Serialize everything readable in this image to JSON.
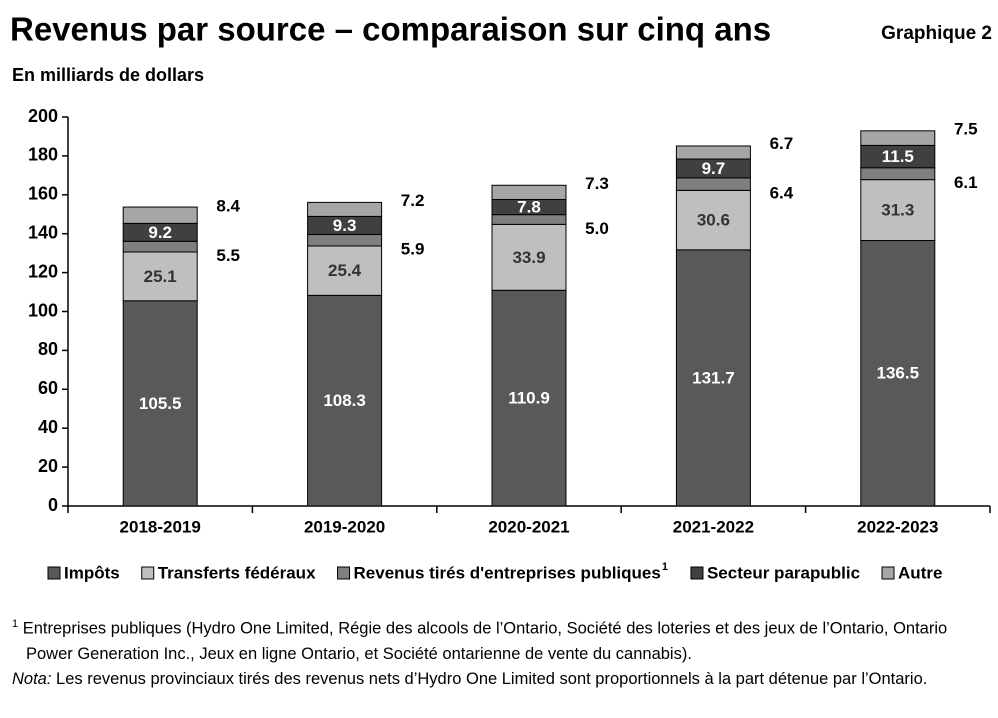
{
  "chart_data": {
    "type": "stacked_bar",
    "title": "Revenus par source – comparaison sur cinq ans",
    "chart_number": "Graphique 2",
    "subtitle": "En milliards de dollars",
    "categories": [
      "2018-2019",
      "2019-2020",
      "2020-2021",
      "2021-2022",
      "2022-2023"
    ],
    "series": [
      {
        "name": "Impôts",
        "color": "#595959",
        "label_color": "#ffffff",
        "label_position": "inside",
        "values": [
          105.5,
          108.3,
          110.9,
          131.7,
          136.5
        ]
      },
      {
        "name": "Transferts fédéraux",
        "color": "#bfbfbf",
        "label_color": "#333333",
        "label_position": "inside",
        "values": [
          25.1,
          25.4,
          33.9,
          30.6,
          31.3
        ]
      },
      {
        "name": "Revenus tirés d'entreprises publiques",
        "footnote_mark": "1",
        "color": "#7f7f7f",
        "label_color": "#000000",
        "label_position": "outside",
        "values": [
          5.5,
          5.9,
          5.0,
          6.4,
          6.1
        ],
        "value_labels": [
          "5.5",
          "5.9",
          "5.0",
          "6.4",
          "6.1"
        ]
      },
      {
        "name": "Secteur parapublic",
        "color": "#404040",
        "label_color": "#ffffff",
        "label_position": "inside",
        "values": [
          9.2,
          9.3,
          7.8,
          9.7,
          11.5
        ]
      },
      {
        "name": "Autre",
        "color": "#a6a6a6",
        "label_color": "#000000",
        "label_position": "outside",
        "values": [
          8.4,
          7.2,
          7.3,
          6.7,
          7.5
        ]
      }
    ],
    "ylim": [
      0,
      200
    ],
    "yticks": [
      0,
      20,
      40,
      60,
      80,
      100,
      120,
      140,
      160,
      180,
      200
    ],
    "grid": false,
    "legend": "bottom",
    "footnotes": [
      {
        "mark": "1",
        "text": "Entreprises publiques (Hydro One Limited, Régie des alcools de l’Ontario, Société des loteries et des jeux de l’Ontario, Ontario Power Generation Inc., Jeux en ligne Ontario, et Société ontarienne de vente du cannabis)."
      }
    ],
    "note": {
      "label": "Nota:",
      "text": "Les revenus provinciaux tirés des revenus nets d’Hydro One Limited sont proportionnels à la part détenue par l’Ontario."
    }
  }
}
